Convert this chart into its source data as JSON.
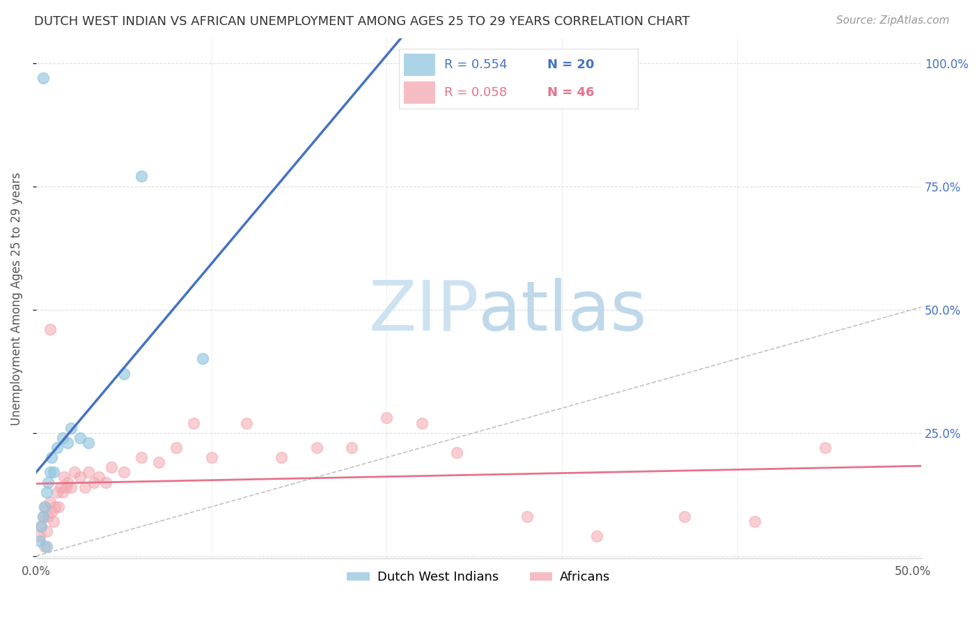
{
  "title": "DUTCH WEST INDIAN VS AFRICAN UNEMPLOYMENT AMONG AGES 25 TO 29 YEARS CORRELATION CHART",
  "source": "Source: ZipAtlas.com",
  "ylabel": "Unemployment Among Ages 25 to 29 years",
  "xlim": [
    0.0,
    0.505
  ],
  "ylim": [
    -0.005,
    1.05
  ],
  "yticks_right": [
    0.0,
    0.25,
    0.5,
    0.75,
    1.0
  ],
  "yticklabels_right": [
    "",
    "25.0%",
    "50.0%",
    "75.0%",
    "100.0%"
  ],
  "xtick_positions": [
    0.0,
    0.1,
    0.2,
    0.3,
    0.4,
    0.5
  ],
  "label1": "Dutch West Indians",
  "label2": "Africans",
  "color1": "#92c5de",
  "color2": "#f4a6b0",
  "regression_color1": "#4472c4",
  "regression_color2": "#e8728a",
  "background": "#ffffff",
  "grid_color": "#cccccc",
  "watermark_zip": "ZIP",
  "watermark_atlas": "atlas",
  "dwi_x": [
    0.002,
    0.003,
    0.004,
    0.005,
    0.006,
    0.007,
    0.008,
    0.009,
    0.01,
    0.012,
    0.015,
    0.018,
    0.02,
    0.025,
    0.03,
    0.05,
    0.06,
    0.095,
    0.006,
    0.004
  ],
  "dwi_y": [
    0.03,
    0.06,
    0.08,
    0.1,
    0.13,
    0.15,
    0.17,
    0.2,
    0.17,
    0.22,
    0.24,
    0.23,
    0.26,
    0.24,
    0.23,
    0.37,
    0.77,
    0.4,
    0.02,
    0.97
  ],
  "afr_x": [
    0.002,
    0.003,
    0.004,
    0.005,
    0.006,
    0.007,
    0.008,
    0.009,
    0.01,
    0.011,
    0.012,
    0.013,
    0.014,
    0.015,
    0.016,
    0.017,
    0.018,
    0.02,
    0.022,
    0.025,
    0.028,
    0.03,
    0.033,
    0.036,
    0.04,
    0.043,
    0.05,
    0.06,
    0.07,
    0.08,
    0.09,
    0.1,
    0.12,
    0.14,
    0.16,
    0.18,
    0.2,
    0.22,
    0.24,
    0.28,
    0.32,
    0.37,
    0.41,
    0.45,
    0.008,
    0.005
  ],
  "afr_y": [
    0.04,
    0.06,
    0.08,
    0.1,
    0.05,
    0.08,
    0.11,
    0.09,
    0.07,
    0.1,
    0.13,
    0.1,
    0.14,
    0.13,
    0.16,
    0.14,
    0.15,
    0.14,
    0.17,
    0.16,
    0.14,
    0.17,
    0.15,
    0.16,
    0.15,
    0.18,
    0.17,
    0.2,
    0.19,
    0.22,
    0.27,
    0.2,
    0.27,
    0.2,
    0.22,
    0.22,
    0.28,
    0.27,
    0.21,
    0.08,
    0.04,
    0.08,
    0.07,
    0.22,
    0.46,
    0.02
  ],
  "legend_r1_text": "R = 0.554",
  "legend_n1_text": "N = 20",
  "legend_r2_text": "R = 0.058",
  "legend_n2_text": "N = 46",
  "title_fontsize": 13,
  "source_fontsize": 11,
  "axis_label_fontsize": 12,
  "tick_fontsize": 12,
  "legend_fontsize": 13
}
